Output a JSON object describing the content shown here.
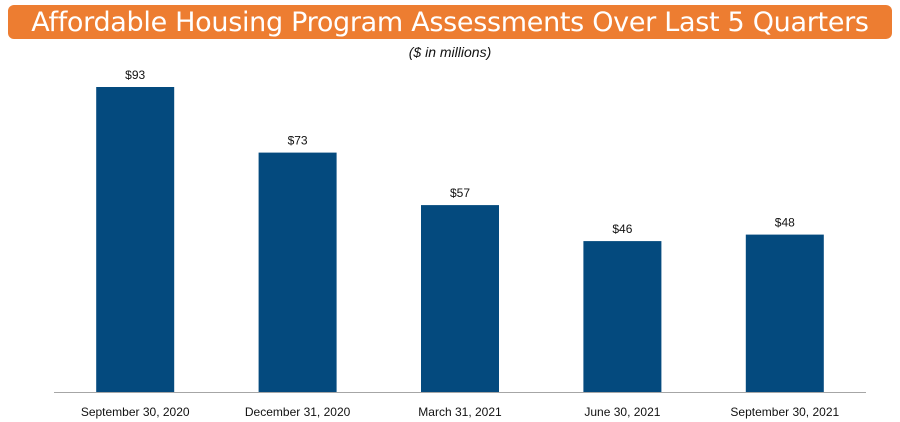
{
  "header": {
    "title": "Affordable Housing Program Assessments Over Last 5 Quarters",
    "subtitle": "($ in millions)"
  },
  "colors": {
    "title_bar": "#ed7d31",
    "bar": "#044a7e",
    "axis": "#a6a6a6"
  },
  "chart_data": {
    "type": "bar",
    "title": "Affordable Housing Program Assessments Over Last 5 Quarters",
    "subtitle": "($ in millions)",
    "categories": [
      "September 30, 2020",
      "December 31, 2020",
      "March 31, 2021",
      "June 30, 2021",
      "September 30, 2021"
    ],
    "values": [
      93,
      73,
      57,
      46,
      48
    ],
    "data_labels": [
      "$93",
      "$73",
      "$57",
      "$46",
      "$48"
    ],
    "xlabel": "",
    "ylabel": "",
    "ylim": [
      0,
      93
    ],
    "grid": false,
    "legend": "none"
  }
}
